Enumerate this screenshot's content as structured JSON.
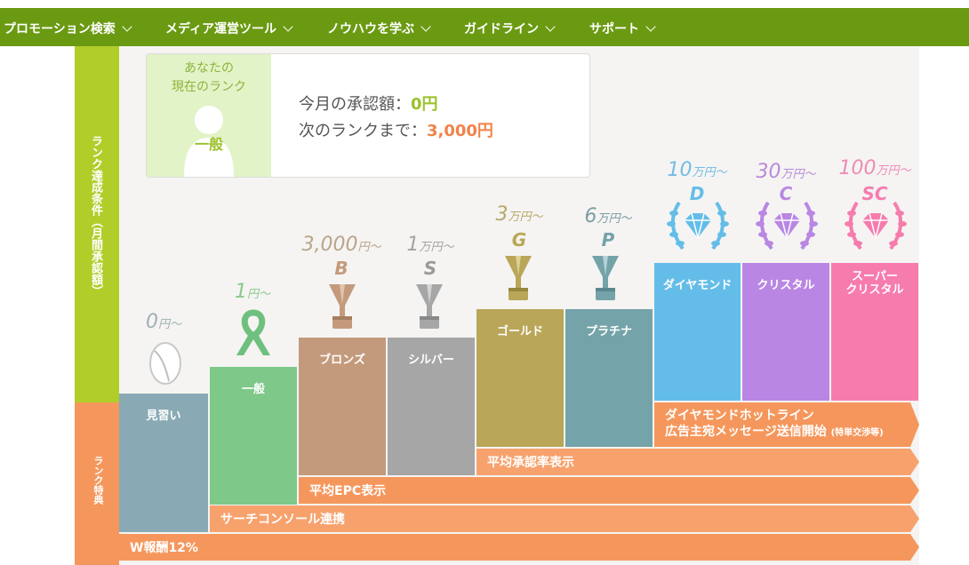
{
  "nav": {
    "items": [
      "プロモーション検索",
      "メディア運営ツール",
      "ノウハウを学ぶ",
      "ガイドライン",
      "サポート"
    ]
  },
  "sidebar": {
    "conditions_label": "ランク達成条件（月間承認額）",
    "benefits_label": "ランク特典"
  },
  "card": {
    "label_line1": "あなたの",
    "label_line2": "現在のランク",
    "rank": "一般",
    "approved_label": "今月の承認額：",
    "approved_value": "0円",
    "next_label": "次のランクまで：",
    "next_value": "3,000円"
  },
  "ranks": [
    {
      "name": "見習い",
      "price": "0",
      "unit": "円〜",
      "letter": "",
      "color": "#89aab4"
    },
    {
      "name": "一般",
      "price": "1",
      "unit": "円〜",
      "letter": "",
      "color": "#7ec88a"
    },
    {
      "name": "ブロンズ",
      "price": "3,000",
      "unit": "円〜",
      "letter": "B",
      "color": "#c49a7c"
    },
    {
      "name": "シルバー",
      "price": "1",
      "unit": "万円〜",
      "letter": "S",
      "color": "#a6a6a6"
    },
    {
      "name": "ゴールド",
      "price": "3",
      "unit": "万円〜",
      "letter": "G",
      "color": "#b9a658"
    },
    {
      "name": "プラチナ",
      "price": "6",
      "unit": "万円〜",
      "letter": "P",
      "color": "#74a3a9"
    },
    {
      "name": "ダイヤモンド",
      "price": "10",
      "unit": "万円〜",
      "letter": "D",
      "color": "#64bde8"
    },
    {
      "name": "クリスタル",
      "price": "30",
      "unit": "万円〜",
      "letter": "C",
      "color": "#b987e3"
    },
    {
      "name_line1": "スーパー",
      "name_line2": "クリスタル",
      "price": "100",
      "unit": "万円〜",
      "letter": "SC",
      "color": "#f77cae"
    }
  ],
  "benefits": [
    {
      "line1": "ダイヤモンドホットライン",
      "line2": "広告主宛メッセージ送信開始",
      "note": "(特単交渉等)"
    },
    {
      "label": "平均承認率表示"
    },
    {
      "label": "平均EPC表示"
    },
    {
      "label": "サーチコンソール連携"
    },
    {
      "label": "W報酬12%"
    }
  ]
}
